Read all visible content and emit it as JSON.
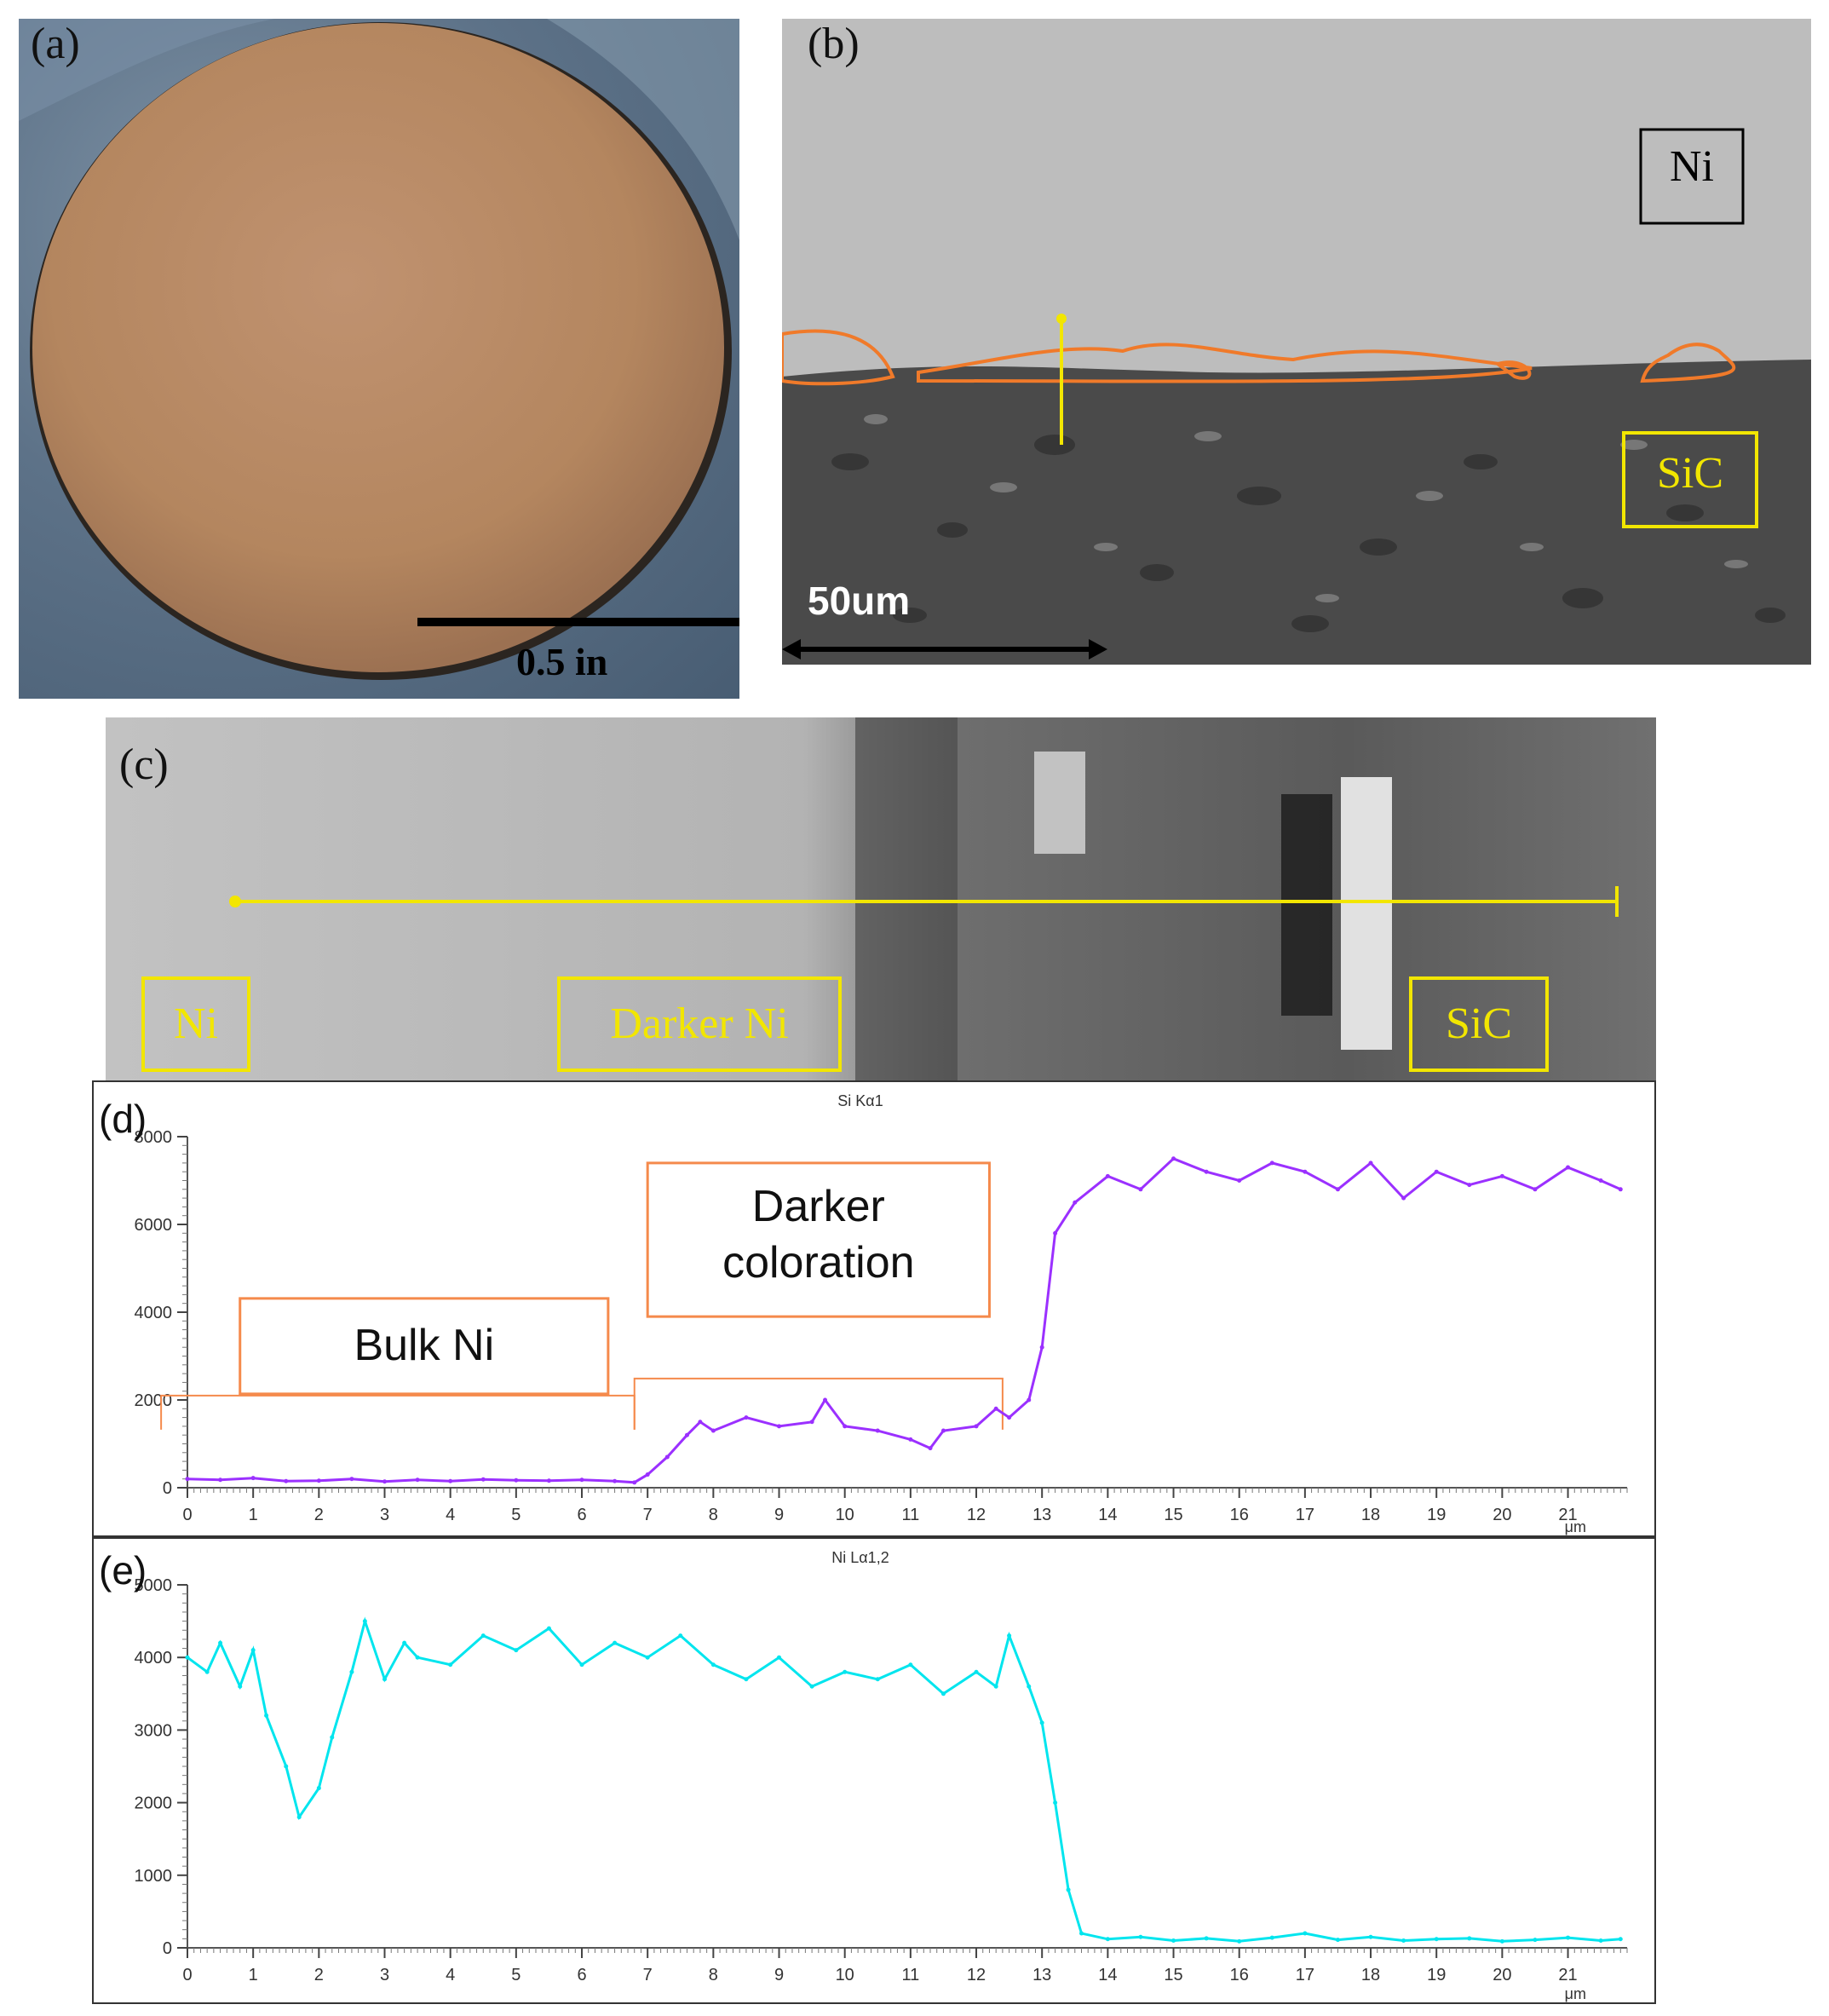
{
  "panel_a": {
    "letter": "(a)",
    "scale_label": "0.5 in",
    "colors": {
      "disc": "#b98b63",
      "background": "#5d7288"
    }
  },
  "panel_b": {
    "letter": "(b)",
    "label_top": "Ni",
    "label_bottom": "SiC",
    "scale_label": "50um",
    "colors": {
      "ni_region": "#bdbdbd",
      "sic_region": "#4a4a4a",
      "interface_outline": "#f07a2a",
      "marker": "#f2e600"
    }
  },
  "panel_c": {
    "letter": "(c)",
    "labels": [
      "Ni",
      "Darker Ni",
      "SiC"
    ],
    "colors": {
      "label": "#f2e600",
      "line": "#f2e600"
    }
  },
  "chart_data": [
    {
      "id": "d",
      "type": "line",
      "letter": "(d)",
      "title": "Si Kα1",
      "xlabel": "μm",
      "xlim": [
        0,
        21.9
      ],
      "ylim": [
        0,
        8000
      ],
      "x_ticks": [
        0,
        1,
        2,
        3,
        4,
        5,
        6,
        7,
        8,
        9,
        10,
        11,
        12,
        13,
        14,
        15,
        16,
        17,
        18,
        19,
        20,
        21
      ],
      "y_ticks": [
        0,
        2000,
        4000,
        6000,
        8000
      ],
      "color": "#9b30ff",
      "grid": false,
      "series": [
        {
          "x": [
            0,
            0.5,
            1,
            1.5,
            2,
            2.5,
            3,
            3.5,
            4,
            4.5,
            5,
            5.5,
            6,
            6.5,
            6.8,
            7,
            7.3,
            7.6,
            7.8,
            8,
            8.5,
            9,
            9.5,
            9.7,
            10,
            10.5,
            11,
            11.3,
            11.5,
            12,
            12.3,
            12.5,
            12.8,
            13,
            13.2,
            13.5,
            14,
            14.5,
            15,
            15.5,
            16,
            16.5,
            17,
            17.5,
            18,
            18.5,
            19,
            19.5,
            20,
            20.5,
            21,
            21.5,
            21.8
          ],
          "values": [
            200,
            180,
            220,
            150,
            160,
            200,
            140,
            180,
            150,
            190,
            170,
            160,
            180,
            150,
            120,
            300,
            700,
            1200,
            1500,
            1300,
            1600,
            1400,
            1500,
            2000,
            1400,
            1300,
            1100,
            900,
            1300,
            1400,
            1800,
            1600,
            2000,
            3200,
            5800,
            6500,
            7100,
            6800,
            7500,
            7200,
            7000,
            7400,
            7200,
            6800,
            7400,
            6600,
            7200,
            6900,
            7100,
            6800,
            7300,
            7000,
            6800
          ]
        }
      ],
      "annotations": [
        {
          "text": "Bulk Ni",
          "x_range": [
            -0.4,
            6.8
          ]
        },
        {
          "text_lines": [
            "Darker",
            "coloration"
          ],
          "x_range": [
            6.8,
            12.4
          ]
        }
      ],
      "annotation_color": "#f58a4c"
    },
    {
      "id": "e",
      "type": "line",
      "letter": "(e)",
      "title": "Ni Lα1,2",
      "xlabel": "μm",
      "xlim": [
        0,
        21.9
      ],
      "ylim": [
        0,
        5000
      ],
      "x_ticks": [
        0,
        1,
        2,
        3,
        4,
        5,
        6,
        7,
        8,
        9,
        10,
        11,
        12,
        13,
        14,
        15,
        16,
        17,
        18,
        19,
        20,
        21
      ],
      "y_ticks": [
        0,
        1000,
        2000,
        3000,
        4000,
        5000
      ],
      "color": "#00e5ee",
      "grid": false,
      "series": [
        {
          "x": [
            0,
            0.3,
            0.5,
            0.8,
            1,
            1.2,
            1.5,
            1.7,
            2,
            2.2,
            2.5,
            2.7,
            3,
            3.3,
            3.5,
            4,
            4.5,
            5,
            5.5,
            6,
            6.5,
            7,
            7.5,
            8,
            8.5,
            9,
            9.5,
            10,
            10.5,
            11,
            11.5,
            12,
            12.3,
            12.5,
            12.8,
            13,
            13.2,
            13.4,
            13.6,
            14,
            14.5,
            15,
            15.5,
            16,
            16.5,
            17,
            17.5,
            18,
            18.5,
            19,
            19.5,
            20,
            20.5,
            21,
            21.5,
            21.8
          ],
          "values": [
            4000,
            3800,
            4200,
            3600,
            4100,
            3200,
            2500,
            1800,
            2200,
            2900,
            3800,
            4500,
            3700,
            4200,
            4000,
            3900,
            4300,
            4100,
            4400,
            3900,
            4200,
            4000,
            4300,
            3900,
            3700,
            4000,
            3600,
            3800,
            3700,
            3900,
            3500,
            3800,
            3600,
            4300,
            3600,
            3100,
            2000,
            800,
            200,
            120,
            150,
            100,
            130,
            90,
            140,
            200,
            110,
            150,
            100,
            120,
            130,
            90,
            110,
            140,
            100,
            120
          ]
        }
      ]
    }
  ]
}
